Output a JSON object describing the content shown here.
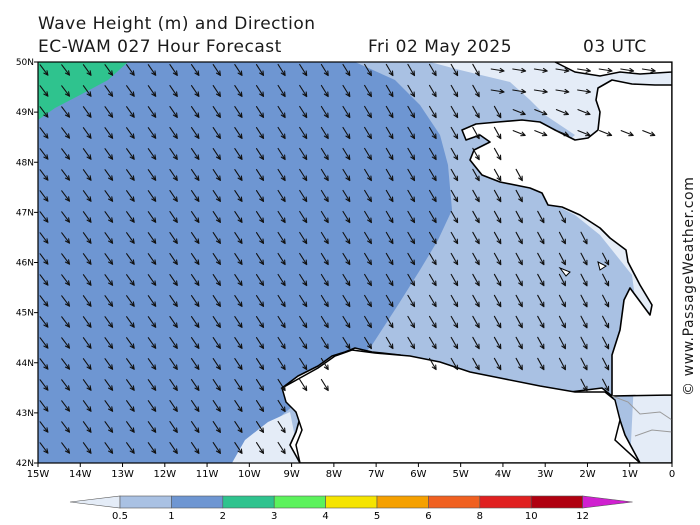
{
  "header": {
    "title": "Wave Height (m) and Direction",
    "model": "EC-WAM 027 Hour Forecast",
    "date": "Fri 02 May 2025",
    "time": "03 UTC"
  },
  "credit": "© www.PassageWeather.com",
  "map": {
    "lat_labels": [
      "50N",
      "49N",
      "48N",
      "47N",
      "46N",
      "45N",
      "44N",
      "43N",
      "42N"
    ],
    "lon_labels": [
      "15W",
      "14W",
      "13W",
      "12W",
      "11W",
      "10W",
      "9W",
      "8W",
      "7W",
      "6W",
      "5W",
      "4W",
      "3W",
      "2W",
      "1W",
      "0"
    ],
    "lat_range": [
      42,
      50
    ],
    "lon_range": [
      -15,
      0
    ],
    "arrow_direction": "towards south-east (wave travel)",
    "colors": {
      "0.5-1": "#e4ecf7",
      "1-2": "#a9c1e3",
      "2-3": "#6e96d2",
      "3-4": "#2fc38e",
      "land": "#ffffff"
    }
  },
  "legend": {
    "ticks": [
      "0.5",
      "1",
      "2",
      "3",
      "4",
      "5",
      "6",
      "8",
      "10",
      "12"
    ],
    "colors": [
      "#e4ecf7",
      "#a9c1e3",
      "#6e96d2",
      "#2fc38e",
      "#5cf25c",
      "#f5e400",
      "#f5a000",
      "#f06020",
      "#e02020",
      "#b00010",
      "#d020d0"
    ],
    "units": "m"
  }
}
